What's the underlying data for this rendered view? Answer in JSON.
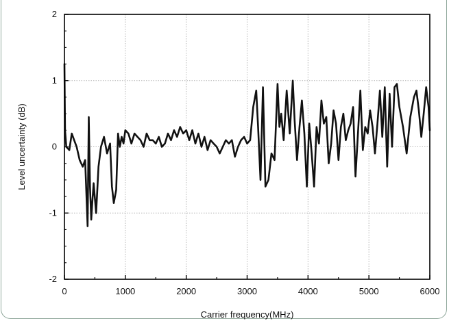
{
  "chart_data": {
    "type": "line",
    "xlabel": "Carrier frequency(MHz)",
    "ylabel": "Level uncertainty (dB)",
    "xlim": [
      0,
      6000
    ],
    "ylim": [
      -2,
      2
    ],
    "x_ticks": [
      0,
      1000,
      2000,
      3000,
      4000,
      5000,
      6000
    ],
    "y_ticks": [
      -2,
      -1,
      0,
      1,
      2
    ],
    "x_tick_labels": [
      "0",
      "1000",
      "2000",
      "3000",
      "4000",
      "5000",
      "6000"
    ],
    "y_tick_labels": [
      "-2",
      "-1",
      "0",
      "1",
      "2"
    ],
    "grid": true,
    "series": [
      {
        "color": "#111111",
        "x": [
          0,
          10,
          30,
          80,
          120,
          160,
          200,
          250,
          300,
          340,
          380,
          400,
          420,
          440,
          460,
          480,
          520,
          560,
          600,
          650,
          700,
          750,
          780,
          810,
          850,
          880,
          910,
          940,
          970,
          1000,
          1050,
          1100,
          1150,
          1200,
          1250,
          1300,
          1350,
          1400,
          1450,
          1500,
          1550,
          1600,
          1650,
          1700,
          1750,
          1800,
          1850,
          1900,
          1950,
          2000,
          2050,
          2100,
          2150,
          2200,
          2250,
          2300,
          2350,
          2400,
          2450,
          2500,
          2550,
          2600,
          2650,
          2700,
          2750,
          2800,
          2850,
          2900,
          2950,
          3000,
          3050,
          3100,
          3150,
          3180,
          3220,
          3260,
          3300,
          3350,
          3400,
          3450,
          3500,
          3530,
          3560,
          3600,
          3650,
          3700,
          3750,
          3780,
          3820,
          3860,
          3900,
          3940,
          3980,
          4020,
          4060,
          4100,
          4140,
          4180,
          4220,
          4260,
          4300,
          4340,
          4380,
          4420,
          4460,
          4500,
          4540,
          4580,
          4620,
          4660,
          4700,
          4740,
          4780,
          4820,
          4860,
          4900,
          4940,
          4980,
          5020,
          5060,
          5100,
          5140,
          5180,
          5220,
          5260,
          5300,
          5340,
          5380,
          5420,
          5460,
          5500,
          5560,
          5620,
          5680,
          5740,
          5780,
          5820,
          5860,
          5900,
          5940,
          5980,
          6000
        ],
        "y": [
          1.25,
          0.25,
          0.0,
          -0.05,
          0.2,
          0.1,
          0.0,
          -0.2,
          -0.3,
          -0.2,
          -1.2,
          0.45,
          -0.6,
          -1.1,
          -0.8,
          -0.55,
          -1.0,
          -0.3,
          0.0,
          0.15,
          -0.1,
          0.05,
          -0.6,
          -0.85,
          -0.65,
          0.2,
          0.0,
          0.15,
          0.05,
          0.25,
          0.2,
          0.05,
          0.2,
          0.15,
          0.1,
          0.0,
          0.2,
          0.1,
          0.1,
          0.05,
          0.15,
          0.0,
          0.05,
          0.2,
          0.1,
          0.25,
          0.15,
          0.3,
          0.2,
          0.25,
          0.1,
          0.25,
          0.05,
          0.2,
          0.0,
          0.15,
          -0.05,
          0.1,
          0.05,
          0.0,
          -0.1,
          0.0,
          0.1,
          0.05,
          0.1,
          -0.15,
          0.0,
          0.1,
          0.15,
          0.05,
          0.1,
          0.6,
          0.85,
          0.3,
          -0.5,
          0.9,
          -0.6,
          -0.5,
          -0.1,
          -0.2,
          0.95,
          0.3,
          0.5,
          0.1,
          0.85,
          0.2,
          1.0,
          0.4,
          -0.2,
          0.3,
          0.7,
          0.2,
          -0.6,
          0.35,
          -0.1,
          -0.6,
          0.3,
          0.05,
          0.7,
          0.35,
          0.45,
          -0.25,
          0.05,
          0.55,
          0.35,
          -0.2,
          0.3,
          0.5,
          0.1,
          0.25,
          0.35,
          0.6,
          -0.45,
          0.2,
          0.85,
          -0.05,
          0.3,
          0.2,
          0.55,
          0.3,
          -0.1,
          0.35,
          0.85,
          0.15,
          0.9,
          -0.3,
          0.8,
          0.0,
          0.9,
          0.95,
          0.6,
          0.3,
          -0.1,
          0.45,
          0.75,
          0.85,
          0.55,
          0.15,
          0.5,
          0.9,
          0.6,
          0.25
        ]
      }
    ]
  }
}
